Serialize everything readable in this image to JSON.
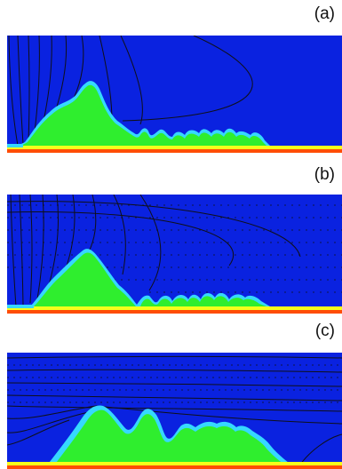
{
  "panels": [
    {
      "label": "(a)"
    },
    {
      "label": "(b)"
    },
    {
      "label": "(c)"
    }
  ],
  "colors": {
    "background_field": "#0a22e0",
    "domain_core": "#2fee2e",
    "domain_edge": "#36d8ff",
    "substrate_orange": "#ff4d05",
    "substrate_yellow": "#f6ff1a",
    "contour_line": "#101018"
  }
}
